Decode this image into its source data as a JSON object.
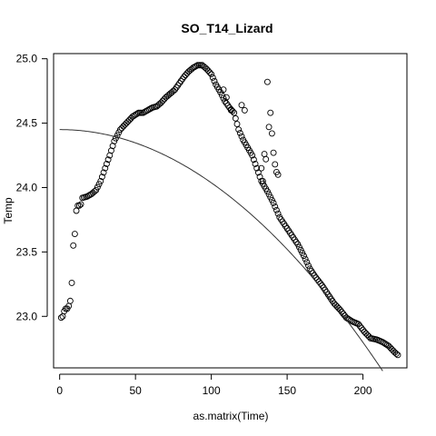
{
  "chart_data": {
    "type": "scatter",
    "title": "SO_T14_Lizard",
    "xlabel": "as.matrix(Time)",
    "ylabel": "Temp",
    "xlim": [
      -4,
      229
    ],
    "ylim": [
      22.6,
      25.04
    ],
    "x_ticks": [
      0,
      50,
      100,
      150,
      200
    ],
    "y_ticks": [
      23.0,
      23.5,
      24.0,
      24.5,
      25.0
    ],
    "x_tick_labels": [
      "0",
      "50",
      "100",
      "150",
      "200"
    ],
    "y_tick_labels": [
      "23.0",
      "23.5",
      "24.0",
      "24.5",
      "25.0"
    ],
    "grid": false,
    "legend": "none",
    "point_color": "#000000",
    "curve_color": "#333333",
    "anchor_points": [
      [
        1,
        22.99
      ],
      [
        2,
        23.0
      ],
      [
        3,
        23.04
      ],
      [
        4,
        23.06
      ],
      [
        5,
        23.06
      ],
      [
        6,
        23.08
      ],
      [
        7,
        23.12
      ],
      [
        8,
        23.26
      ],
      [
        9,
        23.55
      ],
      [
        10,
        23.64
      ],
      [
        11,
        23.82
      ],
      [
        12,
        23.86
      ],
      [
        13,
        23.86
      ],
      [
        14,
        23.87
      ],
      [
        15,
        23.92
      ],
      [
        18,
        23.93
      ],
      [
        21,
        23.95
      ],
      [
        24,
        23.98
      ],
      [
        27,
        24.05
      ],
      [
        30,
        24.15
      ],
      [
        33,
        24.25
      ],
      [
        36,
        24.36
      ],
      [
        40,
        24.45
      ],
      [
        44,
        24.5
      ],
      [
        48,
        24.55
      ],
      [
        52,
        24.58
      ],
      [
        55,
        24.58
      ],
      [
        58,
        24.6
      ],
      [
        61,
        24.62
      ],
      [
        64,
        24.63
      ],
      [
        67,
        24.66
      ],
      [
        70,
        24.7
      ],
      [
        73,
        24.73
      ],
      [
        76,
        24.76
      ],
      [
        79,
        24.81
      ],
      [
        82,
        24.86
      ],
      [
        85,
        24.9
      ],
      [
        88,
        24.93
      ],
      [
        91,
        24.95
      ],
      [
        94,
        24.95
      ],
      [
        97,
        24.92
      ],
      [
        100,
        24.88
      ],
      [
        103,
        24.8
      ],
      [
        106,
        24.74
      ],
      [
        109,
        24.67
      ],
      [
        112,
        24.62
      ],
      [
        115,
        24.58
      ],
      [
        118,
        24.45
      ],
      [
        121,
        24.37
      ],
      [
        124,
        24.31
      ],
      [
        127,
        24.25
      ],
      [
        130,
        24.15
      ],
      [
        133,
        24.05
      ],
      [
        137,
        23.97
      ],
      [
        141,
        23.88
      ],
      [
        145,
        23.77
      ],
      [
        149,
        23.7
      ],
      [
        153,
        23.63
      ],
      [
        157,
        23.56
      ],
      [
        161,
        23.47
      ],
      [
        165,
        23.37
      ],
      [
        169,
        23.3
      ],
      [
        173,
        23.24
      ],
      [
        177,
        23.17
      ],
      [
        181,
        23.1
      ],
      [
        185,
        23.05
      ],
      [
        189,
        22.99
      ],
      [
        193,
        22.96
      ],
      [
        197,
        22.94
      ],
      [
        201,
        22.88
      ],
      [
        205,
        22.83
      ],
      [
        209,
        22.82
      ],
      [
        213,
        22.8
      ],
      [
        217,
        22.77
      ],
      [
        221,
        22.72
      ],
      [
        223,
        22.7
      ]
    ],
    "outliers": [
      [
        133,
        24.15
      ],
      [
        134,
        24.05
      ],
      [
        135,
        24.26
      ],
      [
        136,
        24.22
      ],
      [
        137,
        24.82
      ],
      [
        138,
        24.47
      ],
      [
        139,
        24.58
      ],
      [
        140,
        24.42
      ],
      [
        141,
        24.27
      ],
      [
        142,
        24.18
      ],
      [
        143,
        24.12
      ],
      [
        144,
        24.1
      ],
      [
        108,
        24.76
      ],
      [
        110,
        24.7
      ],
      [
        113,
        24.6
      ],
      [
        120,
        24.64
      ],
      [
        122,
        24.6
      ]
    ],
    "fit_curve": {
      "type": "quadratic",
      "a": 24.45,
      "b": 0.0,
      "c": -4.13e-05,
      "x_range": [
        0,
        213
      ]
    }
  }
}
